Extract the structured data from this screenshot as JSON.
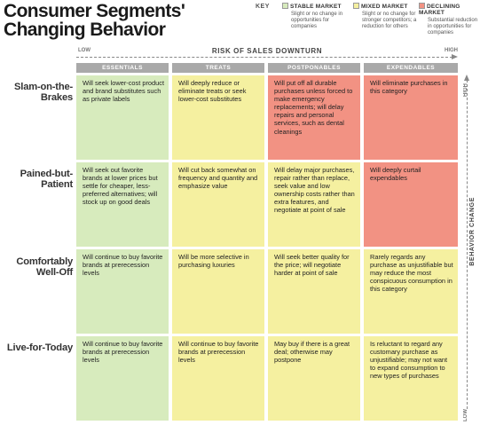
{
  "title": "Consumer Segments' Changing Behavior",
  "key": {
    "label": "KEY",
    "items": [
      {
        "label": "STABLE MARKET",
        "desc": "Slight or no change in opportunities for companies",
        "color": "#d7ebbd"
      },
      {
        "label": "MIXED MARKET",
        "desc": "Slight or no change for stronger competitors; a reduction for others",
        "color": "#f5f0a0"
      },
      {
        "label": "DECLINING MARKET",
        "desc": "Substantial reduction in opportunities for companies",
        "color": "#f29283"
      }
    ]
  },
  "risk_axis": {
    "title": "RISK OF SALES DOWNTURN",
    "low": "LOW",
    "high": "HIGH"
  },
  "behavior_axis": {
    "title": "BEHAVIOR CHANGE",
    "high": "HIGH",
    "low": "LOW"
  },
  "columns": [
    "ESSENTIALS",
    "TREATS",
    "POSTPONABLES",
    "EXPENDABLES"
  ],
  "rows": [
    {
      "label": "Slam-on-the-Brakes",
      "cells": [
        {
          "text": "Will seek lower-cost product and brand substitutes such as private labels",
          "market": "stable"
        },
        {
          "text": "Will deeply reduce or eliminate treats or seek lower-cost substitutes",
          "market": "mixed"
        },
        {
          "text": "Will put off all durable purchases unless forced to make emergency replacements; will delay repairs and personal services, such as dental cleanings",
          "market": "declining"
        },
        {
          "text": "Will eliminate purchases in this category",
          "market": "declining"
        }
      ]
    },
    {
      "label": "Pained-but-Patient",
      "cells": [
        {
          "text": "Will seek out favorite brands at lower prices but settle for cheaper, less-preferred alternatives; will stock up on good deals",
          "market": "stable"
        },
        {
          "text": "Will cut back somewhat on frequency and quantity and emphasize value",
          "market": "mixed"
        },
        {
          "text": "Will delay major purchases, repair rather than replace, seek value and low ownership costs rather than extra features, and negotiate at point of sale",
          "market": "mixed"
        },
        {
          "text": "Will deeply curtail expendables",
          "market": "declining"
        }
      ]
    },
    {
      "label": "Comfortably Well-Off",
      "cells": [
        {
          "text": "Will continue to buy favorite brands at prerecession levels",
          "market": "stable"
        },
        {
          "text": "Will be more selective in purchasing luxuries",
          "market": "mixed"
        },
        {
          "text": "Will seek better quality for the price; will negotiate harder at point of sale",
          "market": "mixed"
        },
        {
          "text": "Rarely regards any purchase as unjustifiable but may reduce the most conspicuous consumption in this category",
          "market": "mixed"
        }
      ]
    },
    {
      "label": "Live-for-Today",
      "cells": [
        {
          "text": "Will continue to buy favorite brands at prerecession levels",
          "market": "stable"
        },
        {
          "text": "Will continue to buy favorite brands at prerecession levels",
          "market": "mixed"
        },
        {
          "text": "May buy if there is a great deal; otherwise may postpone",
          "market": "mixed"
        },
        {
          "text": "Is reluctant to regard any customary purchase as unjustifiable; may not want to expand consumption to new types of purchases",
          "market": "mixed"
        }
      ]
    }
  ]
}
